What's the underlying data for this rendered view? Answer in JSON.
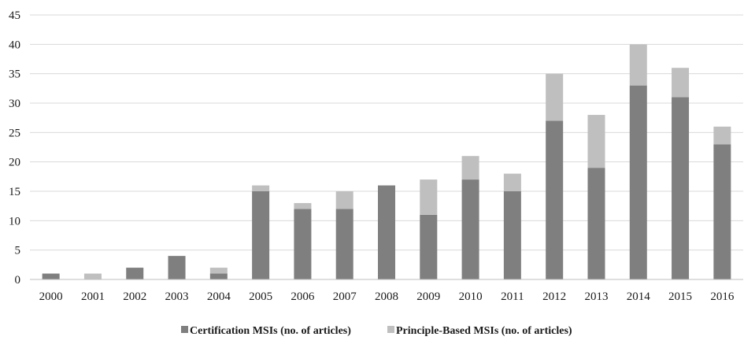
{
  "chart_data": {
    "type": "bar",
    "stacked": true,
    "categories": [
      "2000",
      "2001",
      "2002",
      "2003",
      "2004",
      "2005",
      "2006",
      "2007",
      "2008",
      "2009",
      "2010",
      "2011",
      "2012",
      "2013",
      "2014",
      "2015",
      "2016"
    ],
    "series": [
      {
        "name": "Certification MSIs (no. of articles)",
        "color": "#7f7f7f",
        "values": [
          1,
          0,
          2,
          4,
          1,
          15,
          12,
          12,
          16,
          11,
          17,
          15,
          27,
          19,
          33,
          31,
          23
        ]
      },
      {
        "name": "Principle-Based MSIs (no. of articles)",
        "color": "#bfbfbf",
        "values": [
          0,
          1,
          0,
          0,
          1,
          1,
          1,
          3,
          0,
          6,
          4,
          3,
          8,
          9,
          7,
          5,
          3
        ]
      }
    ],
    "title": "",
    "xlabel": "",
    "ylabel": "",
    "ylim": [
      0,
      45
    ],
    "yticks": [
      0,
      5,
      10,
      15,
      20,
      25,
      30,
      35,
      40,
      45
    ],
    "grid": true,
    "legend_position": "bottom-center",
    "gridline_color": "#d9d9d9",
    "axis_color": "#bfbfbf"
  }
}
